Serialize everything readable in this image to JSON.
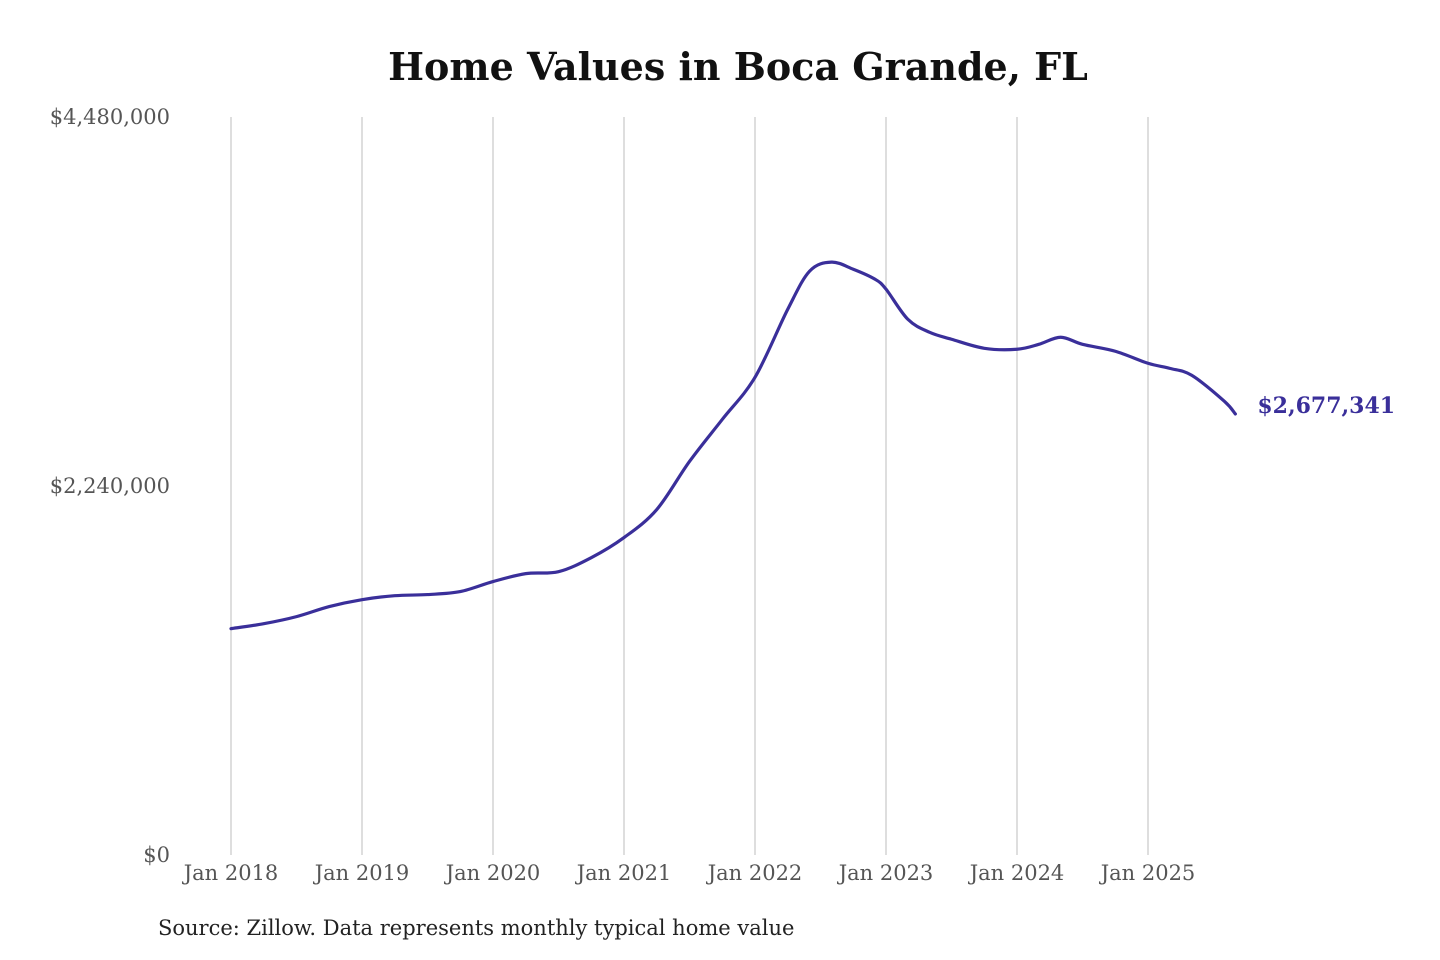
{
  "chart_data": {
    "type": "line",
    "title": "Home Values in Boca Grande, FL",
    "xlabel": "",
    "ylabel": "",
    "ylim": [
      0,
      4480000
    ],
    "y_ticks": [
      "$0",
      "$2,240,000",
      "$4,480,000"
    ],
    "y_tick_values": [
      0,
      2240000,
      4480000
    ],
    "x_ticks": [
      "Jan 2018",
      "Jan 2019",
      "Jan 2020",
      "Jan 2021",
      "Jan 2022",
      "Jan 2023",
      "Jan 2024",
      "Jan 2025"
    ],
    "x_tick_values": [
      "2018-01",
      "2019-01",
      "2020-01",
      "2021-01",
      "2022-01",
      "2023-01",
      "2024-01",
      "2025-01"
    ],
    "grid": "vertical",
    "line_color": "#3a2f9a",
    "series": [
      {
        "x": [
          "2018-01",
          "2018-04",
          "2018-07",
          "2018-10",
          "2019-01",
          "2019-04",
          "2019-07",
          "2019-10",
          "2020-01",
          "2020-04",
          "2020-07",
          "2020-10",
          "2021-01",
          "2021-04",
          "2021-07",
          "2021-10",
          "2022-01",
          "2022-04",
          "2022-06",
          "2022-08",
          "2022-10",
          "2022-12",
          "2023-01",
          "2023-03",
          "2023-05",
          "2023-07",
          "2023-10",
          "2024-01",
          "2024-03",
          "2024-05",
          "2024-07",
          "2024-10",
          "2025-01",
          "2025-03",
          "2025-05",
          "2025-08",
          "2025-09"
        ],
        "values": [
          1374000,
          1404000,
          1447000,
          1508000,
          1550000,
          1574000,
          1581000,
          1599000,
          1660000,
          1708000,
          1720000,
          1805000,
          1927000,
          2097000,
          2389000,
          2644000,
          2900000,
          3313000,
          3544000,
          3599000,
          3556000,
          3495000,
          3435000,
          3252000,
          3173000,
          3131000,
          3076000,
          3070000,
          3100000,
          3143000,
          3100000,
          3058000,
          2985000,
          2954000,
          2912000,
          2754000,
          2677341
        ]
      }
    ],
    "end_label": "$2,677,341",
    "source": "Source: Zillow. Data represents monthly typical home value"
  }
}
